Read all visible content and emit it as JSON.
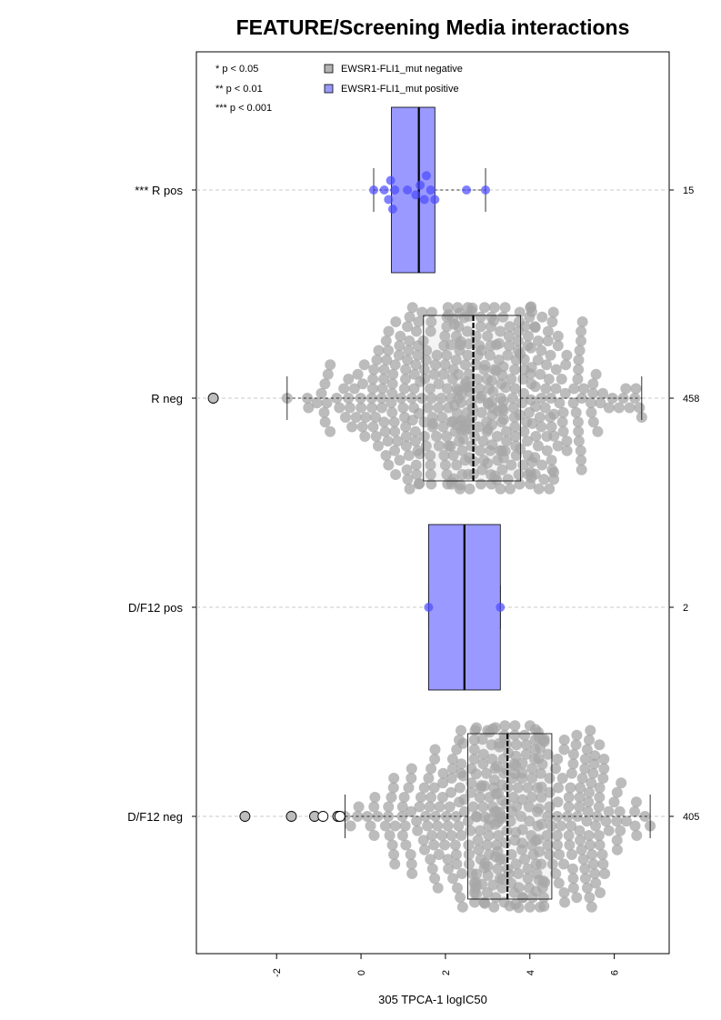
{
  "chart_data": {
    "type": "beeswarm-boxplot",
    "title": "FEATURE/Screening Media interactions",
    "xlabel": "305 TPCA-1 logIC50",
    "xlim": [
      -3.9,
      7.3
    ],
    "x_ticks": [
      "-2",
      "0",
      "2",
      "4",
      "6"
    ],
    "x_tick_values": [
      -2,
      0,
      2,
      4,
      6
    ],
    "legend": {
      "position": "top-left",
      "significance": [
        "* p < 0.05",
        "** p < 0.01",
        "*** p < 0.001"
      ],
      "entries": [
        {
          "label": "EWSR1-FLI1_mut negative",
          "color": "#b3b3b3"
        },
        {
          "label": "EWSR1-FLI1_mut positive",
          "color": "#9999ff"
        }
      ]
    },
    "colors": {
      "negative_box": "#b3b3b3",
      "positive_box": "#9999ff",
      "negative_points": "#a6a6a6",
      "positive_points": "#4a4aff",
      "grid": "#c8c8c8"
    },
    "groups": [
      {
        "label": "*** R pos",
        "n": "15",
        "kind": "positive",
        "whisker_low": 0.3,
        "q1": 0.72,
        "median": 1.37,
        "q3": 1.75,
        "whisker_high": 2.95,
        "points": [
          0.3,
          0.55,
          0.65,
          0.7,
          0.75,
          0.8,
          1.1,
          1.3,
          1.4,
          1.5,
          1.55,
          1.65,
          1.75,
          2.5,
          2.95
        ],
        "outliers": []
      },
      {
        "label": "R neg",
        "n": "458",
        "kind": "negative",
        "whisker_low": -1.75,
        "q1": 1.48,
        "median": 2.66,
        "q3": 3.78,
        "whisker_high": 6.65,
        "outliers": [
          -3.5
        ]
      },
      {
        "label": "D/F12 pos",
        "n": "2",
        "kind": "positive",
        "whisker_low": 1.6,
        "q1": 1.6,
        "median": 2.45,
        "q3": 3.3,
        "whisker_high": 3.3,
        "points": [
          1.6,
          3.3
        ],
        "outliers": []
      },
      {
        "label": "D/F12 neg",
        "n": "405",
        "kind": "negative",
        "whisker_low": -0.38,
        "q1": 2.53,
        "median": 3.47,
        "q3": 4.52,
        "whisker_high": 6.85,
        "outliers": [
          -2.75,
          -1.65,
          -1.1,
          -0.9,
          -0.55,
          -0.5
        ]
      }
    ]
  }
}
